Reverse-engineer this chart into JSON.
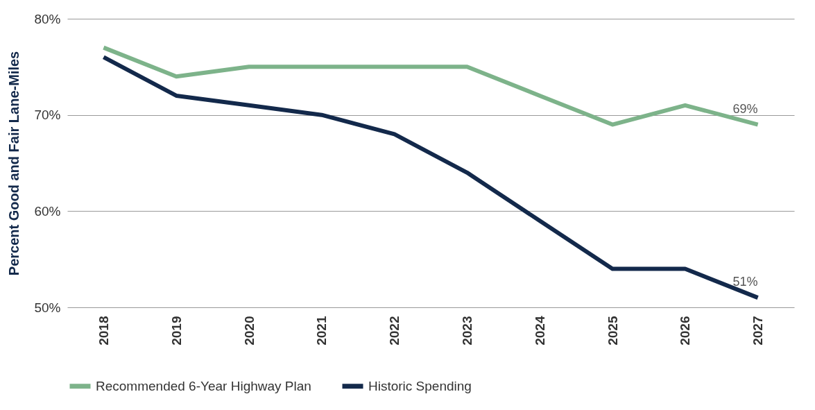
{
  "chart_data": {
    "type": "line",
    "ylabel": "Percent Good and Fair Lane-Miles",
    "categories": [
      "2018",
      "2019",
      "2020",
      "2021",
      "2022",
      "2023",
      "2024",
      "2025",
      "2026",
      "2027"
    ],
    "series": [
      {
        "name": "Recommended 6-Year Highway Plan",
        "color": "#7db38a",
        "values": [
          77,
          74,
          75,
          75,
          75,
          75,
          72,
          69,
          71,
          69
        ],
        "value_labels": [
          null,
          null,
          null,
          null,
          null,
          null,
          null,
          null,
          null,
          "69%"
        ]
      },
      {
        "name": "Historic Spending",
        "color": "#13294b",
        "values": [
          76,
          72,
          71,
          70,
          68,
          64,
          59,
          54,
          54,
          51
        ],
        "value_labels": [
          null,
          null,
          null,
          null,
          null,
          null,
          null,
          null,
          null,
          "51%"
        ]
      }
    ],
    "ylim": [
      50,
      80
    ],
    "yticks": [
      {
        "value": 50,
        "label": "50%"
      },
      {
        "value": 60,
        "label": "60%"
      },
      {
        "value": 70,
        "label": "70%"
      },
      {
        "value": 80,
        "label": "80%"
      }
    ],
    "grid": "y",
    "legend": "bottom",
    "marker": "none",
    "line_style": "solid"
  }
}
